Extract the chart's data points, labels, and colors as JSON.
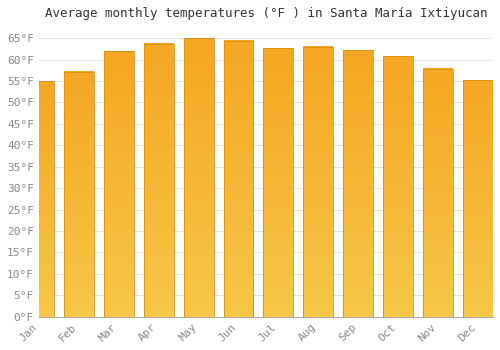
{
  "title": "Average monthly temperatures (°F ) in Santa María Ixtiyucan",
  "months": [
    "Jan",
    "Feb",
    "Mar",
    "Apr",
    "May",
    "Jun",
    "Jul",
    "Aug",
    "Sep",
    "Oct",
    "Nov",
    "Dec"
  ],
  "values": [
    55.0,
    57.2,
    62.0,
    63.7,
    65.0,
    64.4,
    62.6,
    63.0,
    62.2,
    60.8,
    57.9,
    55.2
  ],
  "bar_color_top": "#F5A623",
  "bar_color_bottom": "#FFC84A",
  "bar_edge_color": "#D4901A",
  "background_color": "#FFFFFF",
  "grid_color": "#DDDDDD",
  "ylim": [
    0,
    68
  ],
  "yticks": [
    0,
    5,
    10,
    15,
    20,
    25,
    30,
    35,
    40,
    45,
    50,
    55,
    60,
    65
  ],
  "title_fontsize": 9,
  "tick_fontsize": 8,
  "tick_color": "#888888",
  "font_family": "monospace"
}
